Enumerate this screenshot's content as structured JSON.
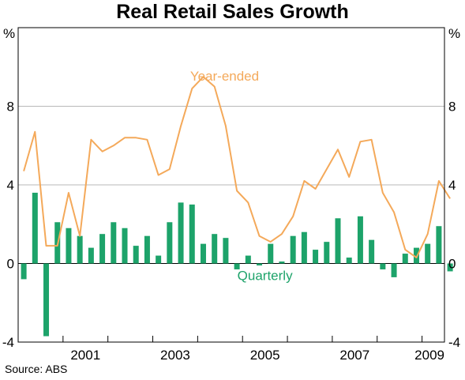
{
  "title": "Real Retail Sales Growth",
  "unit_left": "%",
  "unit_right": "%",
  "source": "Source: ABS",
  "colors": {
    "line": "#F4A95A",
    "bars": "#1DA36A",
    "grid": "#B8B8B8",
    "axis": "#000000"
  },
  "chart_data": {
    "type": "bar+line",
    "title": "Real Retail Sales Growth",
    "ylim": [
      -4,
      12
    ],
    "yticks": [
      -4,
      0,
      4,
      8
    ],
    "xlim": [
      2000.0,
      2009.5
    ],
    "xticks": [
      {
        "label": "2001",
        "value": 2001.5
      },
      {
        "label": "2003",
        "value": 2003.5
      },
      {
        "label": "2005",
        "value": 2005.5
      },
      {
        "label": "2007",
        "value": 2007.5
      },
      {
        "label": "2009",
        "value": 2009.5
      }
    ],
    "year_boundaries": [
      2001,
      2002,
      2003,
      2004,
      2005,
      2006,
      2007,
      2008,
      2009
    ],
    "grid": true,
    "series": [
      {
        "name": "Quarterly",
        "type": "bar",
        "x": [
          2000.125,
          2000.375,
          2000.625,
          2000.875,
          2001.125,
          2001.375,
          2001.625,
          2001.875,
          2002.125,
          2002.375,
          2002.625,
          2002.875,
          2003.125,
          2003.375,
          2003.625,
          2003.875,
          2004.125,
          2004.375,
          2004.625,
          2004.875,
          2005.125,
          2005.375,
          2005.625,
          2005.875,
          2006.125,
          2006.375,
          2006.625,
          2006.875,
          2007.125,
          2007.375,
          2007.625,
          2007.875,
          2008.125,
          2008.375,
          2008.625,
          2008.875,
          2009.125,
          2009.375,
          2009.625
        ],
        "values": [
          -0.8,
          3.6,
          -3.7,
          2.1,
          1.8,
          1.4,
          0.8,
          1.5,
          2.1,
          1.8,
          0.9,
          1.4,
          0.4,
          2.1,
          3.1,
          3.0,
          1.0,
          1.5,
          1.3,
          -0.3,
          0.4,
          -0.1,
          1.0,
          0.1,
          1.4,
          1.6,
          0.7,
          1.1,
          2.3,
          0.3,
          2.4,
          1.2,
          -0.3,
          -0.7,
          0.5,
          0.8,
          1.0,
          1.9,
          -0.4
        ]
      },
      {
        "name": "Year-ended",
        "type": "line",
        "x": [
          2000.125,
          2000.375,
          2000.625,
          2000.875,
          2001.125,
          2001.375,
          2001.625,
          2001.875,
          2002.125,
          2002.375,
          2002.625,
          2002.875,
          2003.125,
          2003.375,
          2003.625,
          2003.875,
          2004.125,
          2004.375,
          2004.625,
          2004.875,
          2005.125,
          2005.375,
          2005.625,
          2005.875,
          2006.125,
          2006.375,
          2006.625,
          2006.875,
          2007.125,
          2007.375,
          2007.625,
          2007.875,
          2008.125,
          2008.375,
          2008.625,
          2008.875,
          2009.125,
          2009.375,
          2009.625
        ],
        "values": [
          4.7,
          6.7,
          0.9,
          0.9,
          3.6,
          1.4,
          6.3,
          5.7,
          6.0,
          6.4,
          6.4,
          6.3,
          4.5,
          4.8,
          7.0,
          8.9,
          9.5,
          9.0,
          7.0,
          3.7,
          3.1,
          1.4,
          1.1,
          1.5,
          2.4,
          4.2,
          3.8,
          4.8,
          5.8,
          4.4,
          6.2,
          6.3,
          3.6,
          2.6,
          0.7,
          0.3,
          1.5,
          4.2,
          3.3
        ]
      }
    ],
    "annotations": [
      {
        "text": "Year-ended",
        "series": "Year-ended",
        "x": 2004.6,
        "y": 9.3
      },
      {
        "text": "Quarterly",
        "series": "Quarterly",
        "x": 2005.5,
        "y": -0.85
      }
    ]
  }
}
